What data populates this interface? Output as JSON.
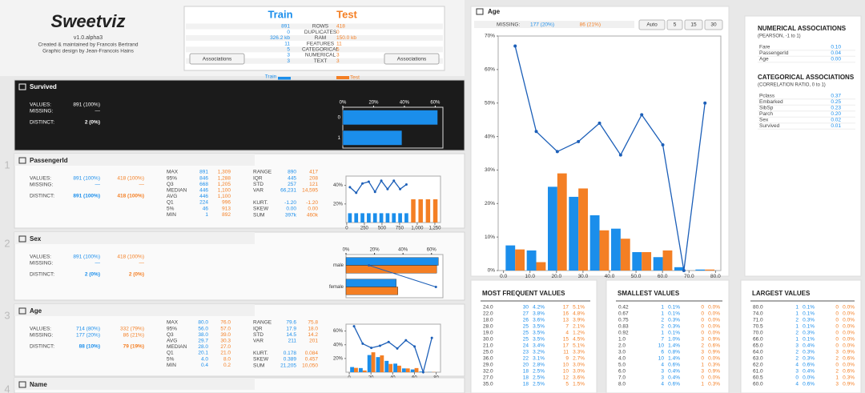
{
  "header": {
    "logo": "Sweetviz",
    "version": "v1.0.alpha3",
    "credits": [
      "Created & maintained by Francois Bertrand",
      "Graphic design by Jean-Francois Hains"
    ]
  },
  "summary": {
    "train": "Train",
    "test": "Test",
    "rows": [
      [
        "891",
        "ROWS",
        "418"
      ],
      [
        "0",
        "DUPLICATES",
        "0"
      ],
      [
        "326.2 kb",
        "RAM",
        "150.0 kb"
      ],
      [
        "11",
        "FEATURES",
        "11"
      ],
      [
        "5",
        "CATEGORICAL",
        "5"
      ],
      [
        "3",
        "NUMERICAL",
        "3"
      ],
      [
        "3",
        "TEXT",
        "3"
      ]
    ],
    "buttons": [
      "Associations",
      "Associations"
    ]
  },
  "legend": {
    "train": "Train",
    "test": "Test",
    "survived": "% Survived",
    "train_color": "#1b8eeb",
    "test_color": "#f47f24",
    "survived_color": "#1c5fb8"
  },
  "features": [
    {
      "name": "Survived",
      "summary": [
        [
          "VALUES:",
          "891 (100%)"
        ],
        [
          "MISSING:",
          "—"
        ],
        [
          "DISTINCT:",
          "2    (0%)"
        ]
      ],
      "chart": {
        "type": "hbar",
        "categories": [
          "0",
          "1"
        ],
        "series": [
          {
            "color": "#1b8eeb",
            "values": [
              61.6,
              38.4
            ]
          }
        ],
        "xlim": [
          0,
          65
        ],
        "xticks": [
          {
            "value": 0,
            "label": "0%"
          },
          {
            "value": 20,
            "label": "20%"
          },
          {
            "value": 40,
            "label": "40%"
          },
          {
            "value": 60,
            "label": "60%"
          }
        ]
      }
    },
    {
      "index": "1",
      "name": "PassengerId",
      "summary": [
        [
          "VALUES:",
          "891 (100%)",
          "418 (100%)"
        ],
        [
          "MISSING:",
          "—",
          "—"
        ],
        [
          "DISTINCT:",
          "891 (100%)",
          "418 (100%)"
        ]
      ],
      "stats": [
        [
          [
            "MAX",
            "891",
            "1,309"
          ],
          [
            "95%",
            "846",
            "1,288"
          ],
          [
            "Q3",
            "668",
            "1,205"
          ],
          [
            "MEDIAN",
            "446",
            "1,100"
          ],
          [
            "AVG",
            "446",
            "1,100"
          ],
          [
            "Q1",
            "224",
            "996"
          ],
          [
            "5%",
            "46",
            "913"
          ],
          [
            "MIN",
            "1",
            "892"
          ]
        ],
        [
          [
            "RANGE",
            "890",
            "417"
          ],
          [
            "IQR",
            "445",
            "208"
          ],
          [
            "STD",
            "257",
            "121"
          ],
          [
            "VAR",
            "66,231",
            "14,595"
          ],
          [
            "KURT.",
            "-1.20",
            "-1.20"
          ],
          [
            "SKEW",
            "0.00",
            "0.00"
          ],
          [
            "SUM",
            "397k",
            "460k"
          ]
        ]
      ],
      "chart": {
        "type": "hist",
        "xlim": [
          -10,
          1330
        ],
        "xticks": [
          0,
          250,
          500,
          750,
          {
            "value": 1000,
            "label": "1,000"
          },
          {
            "value": 1250,
            "label": "1,250"
          }
        ],
        "ylim": [
          0,
          50
        ],
        "yticks": [
          {
            "value": 20,
            "label": "20%"
          },
          {
            "value": 40,
            "label": "40%"
          }
        ],
        "series": [
          {
            "color": "#1b8eeb",
            "bins": [
              1,
              90,
              179,
              268,
              357,
              446,
              535,
              624,
              713,
              802,
              891
            ],
            "values": [
              10,
              10,
              10,
              10,
              10,
              10,
              10,
              10,
              10,
              10
            ]
          },
          {
            "color": "#f47f24",
            "bins": [
              892,
              996.25,
              1100.5,
              1204.75,
              1309
            ],
            "values": [
              25,
              25,
              25,
              25
            ]
          },
          {
            "type": "line",
            "color": "#1c5fb8",
            "values": [
              38,
              32,
              42,
              44,
              33,
              45,
              36,
              45,
              36,
              41
            ]
          }
        ]
      }
    },
    {
      "index": "2",
      "name": "Sex",
      "summary": [
        [
          "VALUES:",
          "891 (100%)",
          "418 (100%)"
        ],
        [
          "MISSING:",
          "—",
          "—"
        ],
        [
          "DISTINCT:",
          "2    (0%)",
          "2    (0%)"
        ]
      ],
      "chart": {
        "type": "hbar",
        "categories": [
          "male",
          "female"
        ],
        "series": [
          {
            "color": "#1b8eeb",
            "values": [
              64.8,
              35.2
            ]
          },
          {
            "color": "#f47f24",
            "values": [
              63.6,
              36.4
            ]
          },
          {
            "type": "line",
            "axis": "x2",
            "color": "#1c5fb8",
            "values": [
              18.9,
              74.2
            ]
          }
        ],
        "xlim": [
          0,
          68
        ],
        "x2lim": [
          0,
          80
        ],
        "xticks": [
          {
            "value": 0,
            "label": "0%"
          },
          {
            "value": 20,
            "label": "20%"
          },
          {
            "value": 40,
            "label": "40%"
          },
          {
            "value": 60,
            "label": "60%"
          }
        ]
      }
    },
    {
      "index": "3",
      "name": "Age",
      "summary": [
        [
          "VALUES:",
          "714 (80%)",
          "332 (79%)"
        ],
        [
          "MISSING:",
          "177 (20%)",
          "86 (21%)"
        ],
        [
          "DISTINCT:",
          "88  (10%)",
          "79  (19%)"
        ]
      ],
      "stats": [
        [
          [
            "MAX",
            "80.0",
            "76.0"
          ],
          [
            "95%",
            "56.0",
            "57.0"
          ],
          [
            "Q3",
            "38.0",
            "39.0"
          ],
          [
            "AVG",
            "29.7",
            "30.3"
          ],
          [
            "MEDIAN",
            "28.0",
            "27.0"
          ],
          [
            "Q1",
            "20.1",
            "21.0"
          ],
          [
            "5%",
            "4.0",
            "8.0"
          ],
          [
            "MIN",
            "0.4",
            "0.2"
          ]
        ],
        [
          [
            "RANGE",
            "79.6",
            "75.8"
          ],
          [
            "IQR",
            "17.9",
            "18.0"
          ],
          [
            "STD",
            "14.5",
            "14.2"
          ],
          [
            "VAR",
            "211",
            "201"
          ],
          [
            "KURT.",
            "0.178",
            "0.084"
          ],
          [
            "SKEW",
            "0.389",
            "0.457"
          ],
          [
            "SUM",
            "21,205",
            "10,050"
          ]
        ]
      ],
      "chart": {
        "type": "hist",
        "xlim": [
          -3,
          84
        ],
        "xticks": [
          0,
          20,
          40,
          60,
          80
        ],
        "ylim": [
          0,
          70
        ],
        "yticks": [
          {
            "value": 20,
            "label": "20%"
          },
          {
            "value": 40,
            "label": "40%"
          },
          {
            "value": 60,
            "label": "60%"
          }
        ]
      }
    },
    {
      "index": "4",
      "name": "Name"
    }
  ],
  "detail": {
    "title": "Age",
    "missing_label": "MISSING:",
    "missing_train": "177 (20%)",
    "missing_test": "86 (21%)",
    "buttons": [
      "Auto",
      "5",
      "15",
      "30"
    ],
    "chart": {
      "type": "hist",
      "bins": [
        0.42,
        8.38,
        16.34,
        24.29,
        32.25,
        40.21,
        48.17,
        56.13,
        64.08,
        72.04,
        80
      ],
      "xlim": [
        -2,
        82
      ],
      "xticks": [
        {
          "value": 0,
          "label": "0.0"
        },
        {
          "value": 10,
          "label": "10.0"
        },
        {
          "value": 20,
          "label": "20.0"
        },
        {
          "value": 30,
          "label": "30.0"
        },
        {
          "value": 40,
          "label": "40.0"
        },
        {
          "value": 50,
          "label": "50.0"
        },
        {
          "value": 60,
          "label": "60.0"
        },
        {
          "value": 70,
          "label": "70.0"
        },
        {
          "value": 80,
          "label": "80.0"
        }
      ],
      "ylim": [
        0,
        70
      ],
      "yticks": [
        {
          "value": 0,
          "label": "0%"
        },
        {
          "value": 10,
          "label": "10%"
        },
        {
          "value": 20,
          "label": "20%"
        },
        {
          "value": 30,
          "label": "30%"
        },
        {
          "value": 40,
          "label": "40%"
        },
        {
          "value": 50,
          "label": "50%"
        },
        {
          "value": 60,
          "label": "60%"
        },
        {
          "value": 70,
          "label": "70%"
        }
      ],
      "series": [
        {
          "color": "#1b8eeb",
          "values": [
            7.5,
            6,
            25,
            22,
            16.5,
            12.5,
            5.5,
            4,
            1,
            0.3
          ]
        },
        {
          "color": "#f47f24",
          "values": [
            6.3,
            2.5,
            29,
            24.5,
            12,
            9.5,
            5.5,
            6,
            0,
            0.3
          ]
        },
        {
          "type": "line",
          "color": "#1c5fb8",
          "values": [
            67,
            41.5,
            35.5,
            38.5,
            44,
            34.5,
            46.5,
            37.5,
            0,
            50
          ]
        }
      ]
    }
  },
  "associations": {
    "numerical": {
      "title": "NUMERICAL ASSOCIATIONS",
      "subtitle": "(PEARSON, -1 to 1)",
      "rows": [
        [
          "Fare",
          "0.10"
        ],
        [
          "PassengerId",
          "0.04"
        ],
        [
          "Age",
          "0.00"
        ]
      ]
    },
    "categorical": {
      "title": "CATEGORICAL ASSOCIATIONS",
      "subtitle": "(CORRELATION RATIO, 0 to 1)",
      "rows": [
        [
          "Pclass",
          "0.37"
        ],
        [
          "Embarked",
          "0.25"
        ],
        [
          "SibSp",
          "0.23"
        ],
        [
          "Parch",
          "0.20"
        ],
        [
          "Sex",
          "0.02"
        ],
        [
          "Survived",
          "0.01"
        ]
      ]
    }
  },
  "tables": [
    {
      "title": "MOST FREQUENT VALUES",
      "rows": [
        [
          "24.0",
          "30",
          "4.2%",
          "17",
          "5.1%"
        ],
        [
          "22.0",
          "27",
          "3.8%",
          "16",
          "4.8%"
        ],
        [
          "18.0",
          "26",
          "3.6%",
          "13",
          "3.9%"
        ],
        [
          "28.0",
          "25",
          "3.5%",
          "7",
          "2.1%"
        ],
        [
          "19.0",
          "25",
          "3.5%",
          "4",
          "1.2%"
        ],
        [
          "30.0",
          "25",
          "3.5%",
          "15",
          "4.5%"
        ],
        [
          "21.0",
          "24",
          "3.4%",
          "17",
          "5.1%"
        ],
        [
          "25.0",
          "23",
          "3.2%",
          "11",
          "3.3%"
        ],
        [
          "36.0",
          "22",
          "3.1%",
          "9",
          "2.7%"
        ],
        [
          "29.0",
          "20",
          "2.8%",
          "10",
          "3.0%"
        ],
        [
          "32.0",
          "18",
          "2.5%",
          "10",
          "3.0%"
        ],
        [
          "27.0",
          "18",
          "2.5%",
          "12",
          "3.6%"
        ],
        [
          "35.0",
          "18",
          "2.5%",
          "5",
          "1.5%"
        ]
      ]
    },
    {
      "title": "SMALLEST VALUES",
      "rows": [
        [
          "0.42",
          "1",
          "0.1%",
          "0",
          "0.0%"
        ],
        [
          "0.67",
          "1",
          "0.1%",
          "0",
          "0.0%"
        ],
        [
          "0.75",
          "2",
          "0.3%",
          "0",
          "0.0%"
        ],
        [
          "0.83",
          "2",
          "0.3%",
          "0",
          "0.0%"
        ],
        [
          "0.92",
          "1",
          "0.1%",
          "0",
          "0.0%"
        ],
        [
          "1.0",
          "7",
          "1.0%",
          "3",
          "0.9%"
        ],
        [
          "2.0",
          "10",
          "1.4%",
          "2",
          "0.6%"
        ],
        [
          "3.0",
          "6",
          "0.8%",
          "3",
          "0.9%"
        ],
        [
          "4.0",
          "10",
          "1.4%",
          "0",
          "0.0%"
        ],
        [
          "5.0",
          "4",
          "0.6%",
          "1",
          "0.3%"
        ],
        [
          "6.0",
          "3",
          "0.4%",
          "3",
          "0.9%"
        ],
        [
          "7.0",
          "3",
          "0.4%",
          "0",
          "0.0%"
        ],
        [
          "8.0",
          "4",
          "0.6%",
          "1",
          "0.3%"
        ]
      ]
    },
    {
      "title": "LARGEST VALUES",
      "rows": [
        [
          "80.0",
          "1",
          "0.1%",
          "0",
          "0.0%"
        ],
        [
          "74.0",
          "1",
          "0.1%",
          "0",
          "0.0%"
        ],
        [
          "71.0",
          "2",
          "0.3%",
          "0",
          "0.0%"
        ],
        [
          "70.5",
          "1",
          "0.1%",
          "0",
          "0.0%"
        ],
        [
          "70.0",
          "2",
          "0.3%",
          "0",
          "0.0%"
        ],
        [
          "66.0",
          "1",
          "0.1%",
          "0",
          "0.0%"
        ],
        [
          "65.0",
          "3",
          "0.4%",
          "0",
          "0.0%"
        ],
        [
          "64.0",
          "2",
          "0.3%",
          "3",
          "0.9%"
        ],
        [
          "63.0",
          "2",
          "0.3%",
          "2",
          "0.6%"
        ],
        [
          "62.0",
          "4",
          "0.6%",
          "0",
          "0.0%"
        ],
        [
          "61.0",
          "3",
          "0.4%",
          "2",
          "0.6%"
        ],
        [
          "60.5",
          "0",
          "0.0%",
          "1",
          "0.3%"
        ],
        [
          "60.0",
          "4",
          "0.6%",
          "3",
          "0.9%"
        ]
      ]
    }
  ]
}
